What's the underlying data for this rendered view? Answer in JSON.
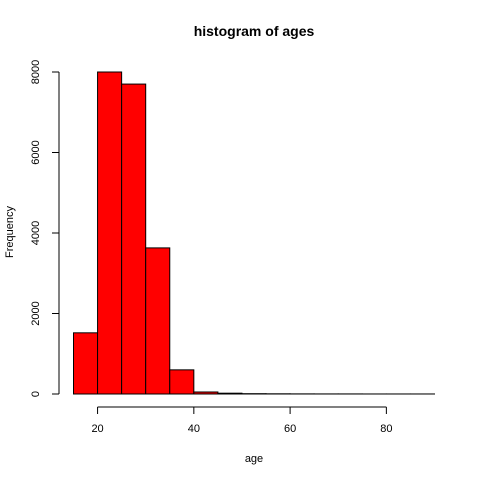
{
  "chart_data": {
    "type": "bar",
    "title": "histogram of ages",
    "xlabel": "age",
    "ylabel": "Frequency",
    "bin_edges": [
      15,
      20,
      25,
      30,
      35,
      40,
      45,
      50,
      55,
      60,
      65,
      70,
      75,
      80,
      85,
      90
    ],
    "values": [
      1520,
      8000,
      7700,
      3630,
      600,
      50,
      20,
      8,
      5,
      3,
      2,
      2,
      1,
      1,
      1
    ],
    "xticks": [
      20,
      40,
      60,
      80
    ],
    "yticks": [
      0,
      2000,
      4000,
      6000,
      8000
    ],
    "xlim": [
      15,
      90
    ],
    "ylim": [
      0,
      8000
    ],
    "bar_color": "#ff0000",
    "grid": false,
    "legend": "none"
  }
}
